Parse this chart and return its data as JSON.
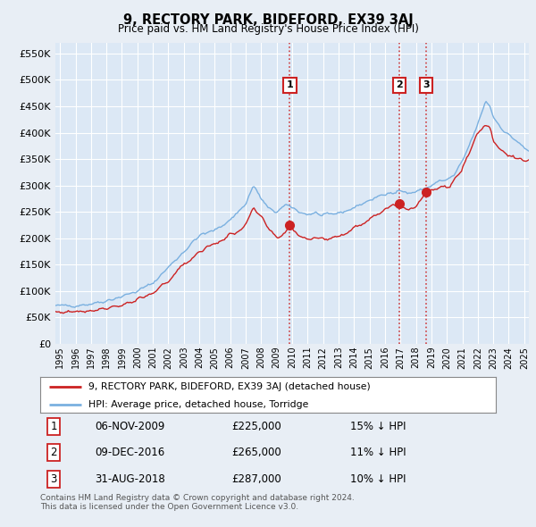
{
  "title": "9, RECTORY PARK, BIDEFORD, EX39 3AJ",
  "subtitle": "Price paid vs. HM Land Registry's House Price Index (HPI)",
  "ylabel_ticks": [
    "£0",
    "£50K",
    "£100K",
    "£150K",
    "£200K",
    "£250K",
    "£300K",
    "£350K",
    "£400K",
    "£450K",
    "£500K",
    "£550K"
  ],
  "ytick_values": [
    0,
    50000,
    100000,
    150000,
    200000,
    250000,
    300000,
    350000,
    400000,
    450000,
    500000,
    550000
  ],
  "ylim": [
    0,
    570000
  ],
  "xlim_start": 1994.7,
  "xlim_end": 2025.3,
  "hpi_color": "#7ab0e0",
  "price_color": "#cc2222",
  "vline_color": "#cc2222",
  "background_color": "#e8eef5",
  "plot_bg_color": "#dce8f5",
  "grid_color": "#ffffff",
  "legend_label_price": "9, RECTORY PARK, BIDEFORD, EX39 3AJ (detached house)",
  "legend_label_hpi": "HPI: Average price, detached house, Torridge",
  "transactions": [
    {
      "num": 1,
      "date": "06-NOV-2009",
      "price": 225000,
      "pct": "15%",
      "year": 2009.85
    },
    {
      "num": 2,
      "date": "09-DEC-2016",
      "price": 265000,
      "pct": "11%",
      "year": 2016.94
    },
    {
      "num": 3,
      "date": "31-AUG-2018",
      "price": 287000,
      "pct": "10%",
      "year": 2018.67
    }
  ],
  "footer": "Contains HM Land Registry data © Crown copyright and database right 2024.\nThis data is licensed under the Open Government Licence v3.0.",
  "xtick_years": [
    1995,
    1996,
    1997,
    1998,
    1999,
    2000,
    2001,
    2002,
    2003,
    2004,
    2005,
    2006,
    2007,
    2008,
    2009,
    2010,
    2011,
    2012,
    2013,
    2014,
    2015,
    2016,
    2017,
    2018,
    2019,
    2020,
    2021,
    2022,
    2023,
    2024,
    2025
  ],
  "hpi_anchors": [
    [
      1994.7,
      72000
    ],
    [
      1995.0,
      72000
    ],
    [
      1996.0,
      73000
    ],
    [
      1997.0,
      76000
    ],
    [
      1998.0,
      82000
    ],
    [
      1999.0,
      90000
    ],
    [
      2000.0,
      100000
    ],
    [
      2001.0,
      115000
    ],
    [
      2002.0,
      145000
    ],
    [
      2003.0,
      175000
    ],
    [
      2004.0,
      205000
    ],
    [
      2005.0,
      215000
    ],
    [
      2006.0,
      235000
    ],
    [
      2007.0,
      265000
    ],
    [
      2007.5,
      300000
    ],
    [
      2008.0,
      275000
    ],
    [
      2008.5,
      255000
    ],
    [
      2009.0,
      250000
    ],
    [
      2009.5,
      260000
    ],
    [
      2009.85,
      262000
    ],
    [
      2010.0,
      258000
    ],
    [
      2010.5,
      250000
    ],
    [
      2011.0,
      245000
    ],
    [
      2011.5,
      248000
    ],
    [
      2012.0,
      242000
    ],
    [
      2012.5,
      245000
    ],
    [
      2013.0,
      248000
    ],
    [
      2013.5,
      252000
    ],
    [
      2014.0,
      258000
    ],
    [
      2014.5,
      265000
    ],
    [
      2015.0,
      272000
    ],
    [
      2015.5,
      278000
    ],
    [
      2016.0,
      282000
    ],
    [
      2016.5,
      288000
    ],
    [
      2016.94,
      292000
    ],
    [
      2017.0,
      290000
    ],
    [
      2017.5,
      285000
    ],
    [
      2018.0,
      288000
    ],
    [
      2018.67,
      295000
    ],
    [
      2019.0,
      300000
    ],
    [
      2019.5,
      308000
    ],
    [
      2020.0,
      310000
    ],
    [
      2020.5,
      320000
    ],
    [
      2021.0,
      345000
    ],
    [
      2021.5,
      380000
    ],
    [
      2022.0,
      415000
    ],
    [
      2022.5,
      460000
    ],
    [
      2022.8,
      450000
    ],
    [
      2023.0,
      430000
    ],
    [
      2023.5,
      410000
    ],
    [
      2024.0,
      395000
    ],
    [
      2024.5,
      385000
    ],
    [
      2025.0,
      370000
    ],
    [
      2025.3,
      365000
    ]
  ],
  "price_anchors": [
    [
      1994.7,
      60000
    ],
    [
      1995.0,
      60000
    ],
    [
      1996.0,
      62000
    ],
    [
      1997.0,
      64000
    ],
    [
      1998.0,
      68000
    ],
    [
      1999.0,
      74000
    ],
    [
      2000.0,
      82000
    ],
    [
      2001.0,
      95000
    ],
    [
      2002.0,
      120000
    ],
    [
      2003.0,
      150000
    ],
    [
      2004.0,
      175000
    ],
    [
      2005.0,
      190000
    ],
    [
      2006.0,
      205000
    ],
    [
      2007.0,
      225000
    ],
    [
      2007.5,
      255000
    ],
    [
      2008.0,
      240000
    ],
    [
      2008.5,
      215000
    ],
    [
      2009.0,
      200000
    ],
    [
      2009.5,
      210000
    ],
    [
      2009.85,
      225000
    ],
    [
      2010.0,
      218000
    ],
    [
      2010.5,
      205000
    ],
    [
      2011.0,
      200000
    ],
    [
      2011.5,
      202000
    ],
    [
      2012.0,
      198000
    ],
    [
      2012.5,
      200000
    ],
    [
      2013.0,
      205000
    ],
    [
      2013.5,
      210000
    ],
    [
      2014.0,
      218000
    ],
    [
      2014.5,
      228000
    ],
    [
      2015.0,
      238000
    ],
    [
      2015.5,
      248000
    ],
    [
      2016.0,
      255000
    ],
    [
      2016.5,
      260000
    ],
    [
      2016.94,
      265000
    ],
    [
      2017.0,
      262000
    ],
    [
      2017.5,
      255000
    ],
    [
      2018.0,
      262000
    ],
    [
      2018.67,
      287000
    ],
    [
      2019.0,
      290000
    ],
    [
      2019.5,
      295000
    ],
    [
      2020.0,
      295000
    ],
    [
      2020.5,
      310000
    ],
    [
      2021.0,
      335000
    ],
    [
      2021.5,
      365000
    ],
    [
      2022.0,
      400000
    ],
    [
      2022.5,
      415000
    ],
    [
      2022.8,
      410000
    ],
    [
      2023.0,
      385000
    ],
    [
      2023.5,
      368000
    ],
    [
      2024.0,
      358000
    ],
    [
      2024.5,
      348000
    ],
    [
      2025.0,
      348000
    ],
    [
      2025.3,
      348000
    ]
  ]
}
